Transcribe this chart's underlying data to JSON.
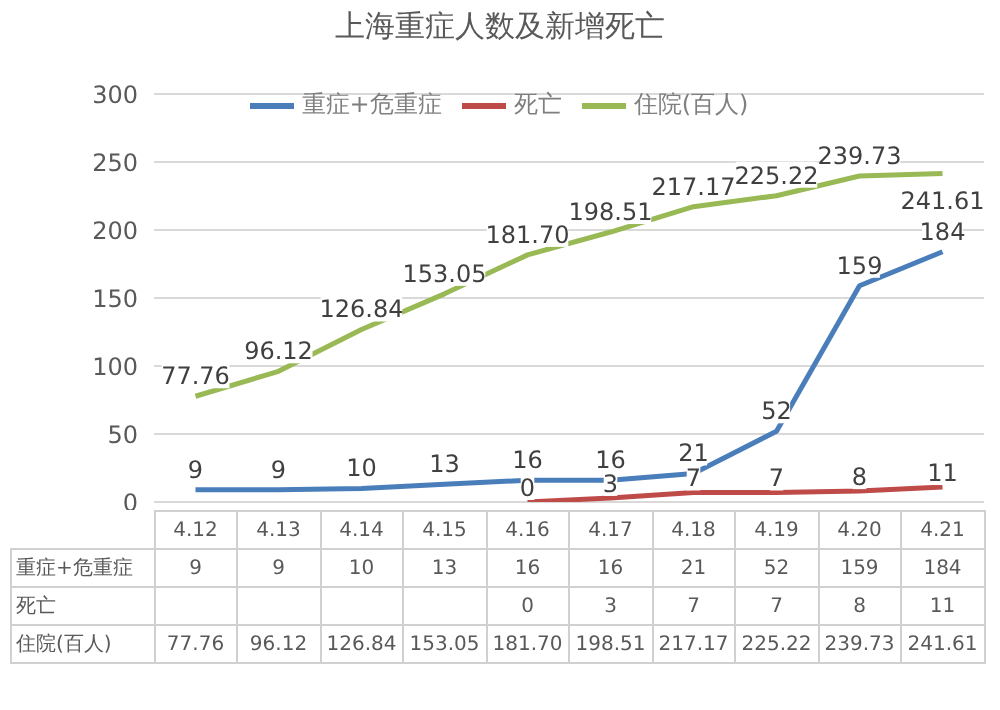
{
  "chart_data": {
    "type": "line",
    "title": "上海重症人数及新增死亡",
    "categories": [
      "4.12",
      "4.13",
      "4.14",
      "4.15",
      "4.16",
      "4.17",
      "4.18",
      "4.19",
      "4.20",
      "4.21"
    ],
    "series": [
      {
        "name": "重症+危重症",
        "color": "#4a7ebb",
        "values": [
          9,
          9,
          10,
          13,
          16,
          16,
          21,
          52,
          159,
          184
        ],
        "value_labels": [
          "9",
          "9",
          "10",
          "13",
          "16",
          "16",
          "21",
          "52",
          "159",
          "184"
        ]
      },
      {
        "name": "死亡",
        "color": "#be4b48",
        "values": [
          null,
          null,
          null,
          null,
          0,
          3,
          7,
          7,
          8,
          11
        ],
        "value_labels": [
          null,
          null,
          null,
          null,
          "0",
          "3",
          "7",
          "7",
          "8",
          "11"
        ]
      },
      {
        "name": "住院(百人)",
        "color": "#98b954",
        "values": [
          77.76,
          96.12,
          126.84,
          153.05,
          181.7,
          198.51,
          217.17,
          225.22,
          239.73,
          241.61
        ],
        "value_labels": [
          "77.76",
          "96.12",
          "126.84",
          "153.05",
          "181.70",
          "198.51",
          "217.17",
          "225.22",
          "239.73",
          "241.61"
        ]
      }
    ],
    "ylim": [
      0,
      300
    ],
    "yticks": [
      0,
      50,
      100,
      150,
      200,
      250,
      300
    ],
    "grid": "y",
    "legend": "top",
    "marker": "none",
    "line_style": "solid",
    "tick_labels": "y"
  }
}
